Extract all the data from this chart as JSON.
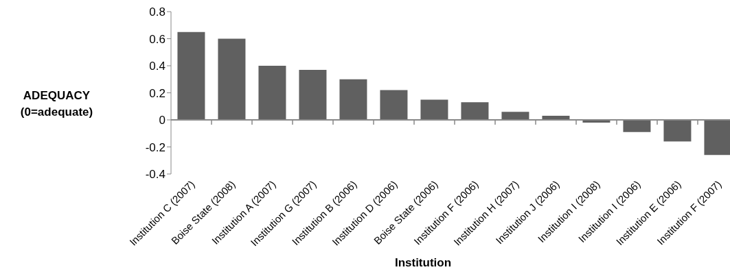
{
  "chart_data": {
    "type": "bar",
    "xlabel": "Institution",
    "ylabel": "ADEQUACY (0=adequate)",
    "categories": [
      "Institution C (2007)",
      "Boise State (2008)",
      "Institution A (2007)",
      "Institution G (2007)",
      "Institution B (2006)",
      "Institution D (2006)",
      "Boise State (2006)",
      "Institution F (2006)",
      "Institution H (2007)",
      "Institution J (2006)",
      "Institution I (2008)",
      "Institution I (2006)",
      "Institution E (2006)",
      "Institution F (2007)"
    ],
    "values": [
      0.65,
      0.6,
      0.4,
      0.37,
      0.3,
      0.22,
      0.15,
      0.13,
      0.06,
      0.03,
      -0.02,
      -0.09,
      -0.16,
      -0.26
    ],
    "color": "#606060",
    "ylim": [
      -0.4,
      0.8
    ],
    "yticks": [
      -0.4,
      -0.2,
      0,
      0.2,
      0.4,
      0.6,
      0.8
    ],
    "legend": false
  }
}
